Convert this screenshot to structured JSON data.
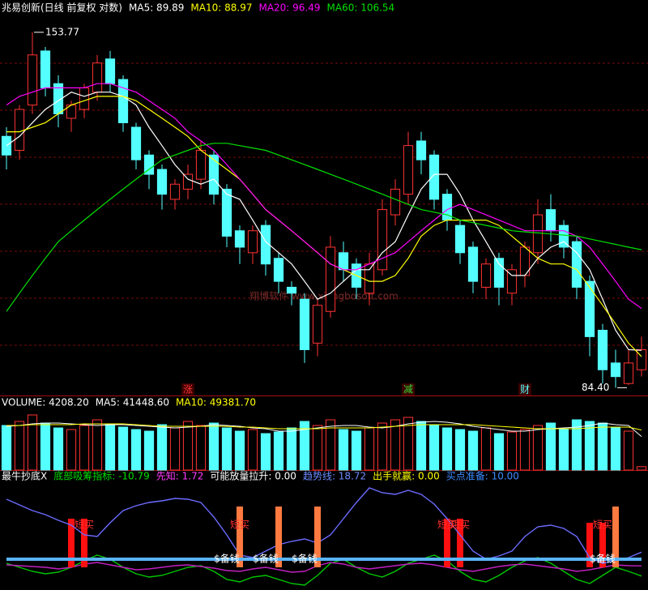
{
  "chart_data": [
    {
      "type": "candlestick",
      "title": "兆易创新(日线 前复权 对数)",
      "log_scale": true,
      "ylim": [
        83.3,
        158
      ],
      "up_color": "#ff3232",
      "down_color": "#54ffff",
      "title_color": "#ffffff",
      "open": [
        129,
        126,
        136,
        149,
        141,
        133,
        135,
        139,
        147,
        142,
        131,
        125,
        122,
        116,
        118,
        120,
        125,
        118,
        110,
        106,
        111,
        105,
        100,
        98,
        91,
        96,
        106,
        104,
        99,
        103,
        113,
        117,
        128,
        125,
        117,
        111,
        107,
        100,
        105,
        99,
        102,
        106,
        114,
        111,
        108,
        101,
        93,
        88,
        85,
        87
      ],
      "high": [
        131,
        136,
        153.77,
        150,
        143,
        137,
        141,
        148,
        149,
        143,
        132,
        126,
        123,
        120,
        123,
        128,
        126,
        119,
        111,
        111,
        112,
        106,
        101,
        99,
        98,
        109,
        108,
        105,
        106,
        116,
        120,
        130,
        130,
        126,
        118,
        112,
        108,
        105,
        106,
        104,
        108,
        116,
        117,
        112,
        109,
        102,
        94,
        90,
        90,
        92
      ],
      "low": [
        122,
        124,
        134,
        138,
        131,
        130,
        133,
        137,
        139,
        130,
        122,
        118,
        114,
        114,
        116,
        118,
        115,
        107,
        104,
        104,
        102,
        99,
        97,
        88,
        89,
        95,
        101,
        98,
        97,
        102,
        111,
        115,
        121,
        114,
        110,
        104,
        99,
        98,
        97,
        97,
        100,
        104,
        108,
        105,
        98,
        89,
        85,
        84.4,
        84.8,
        86
      ],
      "close": [
        125,
        135,
        148,
        140,
        134,
        136,
        140,
        146,
        141,
        132,
        124,
        121,
        117,
        119,
        121,
        126,
        117,
        109,
        107,
        110,
        104,
        101,
        99,
        90,
        97,
        107,
        103,
        100,
        104,
        114,
        118,
        127,
        124,
        116,
        112,
        106,
        101,
        104,
        100,
        103,
        107,
        113,
        110,
        107,
        100,
        92,
        87,
        86,
        88,
        90
      ],
      "series": [
        {
          "name": "MA5: 89.89",
          "color": "#ffffff",
          "values": [
            127,
            129,
            132,
            135,
            137,
            139,
            138,
            139,
            139,
            138,
            136,
            131,
            127,
            123,
            120,
            119,
            120,
            117,
            116,
            112,
            108,
            106,
            104,
            101,
            98,
            99,
            101,
            103,
            103,
            106,
            108,
            113,
            118,
            121,
            121,
            117,
            112,
            108,
            104,
            102,
            102,
            105,
            107,
            108,
            106,
            103,
            98,
            93,
            90,
            89.89
          ]
        },
        {
          "name": "MA10: 88.97",
          "color": "#ffff00",
          "values": [
            130,
            130,
            131,
            132,
            134,
            136,
            137,
            138,
            138,
            138,
            137,
            135,
            133,
            131,
            129,
            126,
            124,
            122,
            120,
            117,
            114,
            112,
            110,
            108,
            106,
            104,
            103,
            102,
            101,
            101,
            102,
            105,
            109,
            111,
            112,
            112,
            112,
            112,
            111,
            109,
            107,
            105,
            104,
            104,
            103,
            100,
            97,
            94,
            91,
            88.97
          ]
        },
        {
          "name": "MA20: 96.49",
          "color": "#ff00ff",
          "values": [
            136,
            138,
            139,
            140,
            140,
            140,
            140,
            141,
            141,
            140,
            139,
            137,
            135,
            133,
            130,
            128,
            126,
            123,
            120,
            117,
            114,
            112,
            110,
            108,
            106,
            104,
            103,
            103,
            104,
            105,
            106,
            108,
            110,
            112,
            114,
            115,
            114,
            113,
            112,
            111,
            110,
            110,
            110,
            110,
            109,
            107,
            104,
            101,
            98,
            96.49
          ]
        },
        {
          "name": "MA60: 106.54",
          "color": "#00e000",
          "values": [
            96,
            99,
            102,
            105,
            108,
            110,
            112,
            114,
            116,
            118,
            120,
            122,
            124,
            125,
            126,
            127,
            127.5,
            127.5,
            127,
            126.5,
            126,
            125,
            124,
            123,
            122,
            121,
            120,
            119,
            118,
            117,
            116,
            115,
            114,
            113.5,
            113,
            112,
            111.5,
            111,
            110.5,
            110,
            109.8,
            109.6,
            109.4,
            109.2,
            109,
            108.5,
            108,
            107.5,
            107,
            106.54
          ]
        }
      ],
      "price_labels": [
        {
          "text": "153.77",
          "index": 2
        },
        {
          "text": "84.40",
          "index": 47
        }
      ],
      "events": [
        {
          "text": "涨",
          "index": 14,
          "color": "#ff3232"
        },
        {
          "text": "减",
          "index": 31,
          "color": "#33dd33"
        },
        {
          "text": "财",
          "index": 40,
          "color": "#54ffff"
        }
      ],
      "watermark": "翔博软件  www.xiangbosoft.com"
    },
    {
      "type": "bar",
      "title": "VOLUME: 4208.20",
      "title_color": "#ffffff",
      "ylim": [
        0,
        90000
      ],
      "values": [
        55000,
        60000,
        68000,
        58000,
        52000,
        50000,
        55000,
        62000,
        57000,
        53000,
        50000,
        48000,
        56000,
        52000,
        60000,
        55000,
        58000,
        52000,
        48000,
        50000,
        45000,
        47000,
        52000,
        60000,
        55000,
        62000,
        50000,
        48000,
        52000,
        58000,
        62000,
        65000,
        60000,
        56000,
        52000,
        50000,
        48000,
        52000,
        45000,
        47000,
        50000,
        55000,
        58000,
        50000,
        62000,
        60000,
        58000,
        52000,
        48000,
        4208.2
      ],
      "series": [
        {
          "name": "MA5: 41448.60",
          "color": "#ffffff",
          "values": [
            54000,
            55000,
            57000,
            58000,
            58000,
            57000,
            56000,
            55000,
            56000,
            56000,
            55000,
            54000,
            53000,
            52000,
            53000,
            54000,
            56000,
            55000,
            54000,
            52000,
            51000,
            48000,
            48000,
            50000,
            52000,
            54000,
            55000,
            55000,
            53000,
            52000,
            54000,
            57000,
            59000,
            60000,
            59000,
            57000,
            54000,
            52000,
            50000,
            48000,
            48000,
            50000,
            51000,
            52000,
            53000,
            55000,
            58000,
            56000,
            55000,
            41448.6
          ]
        },
        {
          "name": "MA10: 49381.70",
          "color": "#ffff00",
          "values": [
            55000,
            55000,
            56000,
            56000,
            56000,
            56000,
            57000,
            57000,
            57000,
            57000,
            56000,
            55000,
            54000,
            54000,
            54000,
            54000,
            54000,
            54000,
            53000,
            53000,
            52000,
            51000,
            51000,
            51000,
            51000,
            52000,
            52000,
            52000,
            52000,
            53000,
            54000,
            55000,
            56000,
            56000,
            56000,
            56000,
            56000,
            55000,
            54000,
            53000,
            52000,
            51000,
            51000,
            51000,
            51000,
            52000,
            53000,
            53000,
            53000,
            49381.7
          ]
        }
      ]
    },
    {
      "type": "indicator",
      "title": "最牛抄底X",
      "title_color": "#ffffff",
      "ylim": [
        -25,
        105
      ],
      "series": [
        {
          "name": "底部吸筹指标: -10.79",
          "kind": "line",
          "color": "#00c800",
          "label_color": "#00e000",
          "values": [
            5,
            0,
            -5,
            -8,
            -6,
            0,
            8,
            15,
            10,
            0,
            -8,
            -12,
            -10,
            -5,
            0,
            2,
            -5,
            -15,
            -18,
            -12,
            -10,
            -15,
            -20,
            -22,
            -10,
            5,
            10,
            0,
            -8,
            -12,
            -5,
            5,
            10,
            15,
            8,
            -5,
            -15,
            -18,
            -10,
            0,
            8,
            12,
            5,
            -5,
            -15,
            -20,
            -10,
            0,
            -5,
            -10.79
          ]
        },
        {
          "name": "先知: 1.72",
          "kind": "line",
          "color": "#c020c0",
          "label_color": "#ff3cff",
          "values": [
            3,
            2,
            1,
            0,
            -2,
            0,
            4,
            6,
            3,
            0,
            -3,
            -2,
            0,
            2,
            3,
            1,
            -1,
            -4,
            -5,
            -2,
            0,
            -3,
            -6,
            -5,
            2,
            6,
            4,
            0,
            -2,
            0,
            2,
            4,
            5,
            3,
            0,
            -3,
            -5,
            -2,
            1,
            3,
            4,
            2,
            0,
            -2,
            -5,
            -3,
            0,
            3,
            2,
            1.72
          ]
        },
        {
          "name": "可能放量拉升: 0.00",
          "kind": "bar",
          "color": "#ff1010",
          "label_color": "#ffffff",
          "values": [
            0,
            0,
            0,
            0,
            0,
            60,
            60,
            0,
            0,
            0,
            0,
            0,
            0,
            0,
            0,
            0,
            0,
            0,
            0,
            0,
            0,
            0,
            0,
            0,
            0,
            0,
            0,
            0,
            0,
            0,
            0,
            0,
            0,
            0,
            60,
            60,
            0,
            0,
            0,
            0,
            0,
            0,
            0,
            0,
            0,
            55,
            55,
            0,
            0,
            0
          ]
        },
        {
          "name": "趋势线: 18.72",
          "kind": "line",
          "color": "#6b6bff",
          "label_color": "#6b8cff",
          "values": [
            84,
            77,
            70,
            65,
            58,
            52,
            40,
            38,
            55,
            70,
            76,
            80,
            82,
            85,
            84,
            80,
            62,
            40,
            15,
            12,
            20,
            28,
            32,
            35,
            30,
            40,
            60,
            80,
            98,
            92,
            90,
            95,
            90,
            78,
            60,
            40,
            20,
            10,
            14,
            20,
            38,
            50,
            52,
            48,
            38,
            12,
            5,
            8,
            12,
            18.72
          ]
        },
        {
          "name": "出手就赢: 0.00",
          "kind": "bar",
          "color": "#ff7a40",
          "label_color": "#ffff00",
          "values": [
            0,
            0,
            0,
            0,
            0,
            0,
            0,
            0,
            0,
            0,
            0,
            0,
            0,
            0,
            0,
            0,
            0,
            0,
            75,
            0,
            0,
            75,
            0,
            0,
            75,
            0,
            0,
            0,
            0,
            0,
            0,
            0,
            0,
            0,
            0,
            0,
            0,
            0,
            0,
            0,
            0,
            0,
            0,
            0,
            0,
            0,
            0,
            75,
            0,
            0
          ]
        },
        {
          "name": "买点准备: 10.00",
          "kind": "thick",
          "color": "#5ab4ff",
          "label_color": "#3c8cff",
          "values": [
            10,
            10,
            10,
            10,
            10,
            10,
            10,
            10,
            10,
            10,
            10,
            10,
            10,
            10,
            10,
            10,
            10,
            10,
            10,
            10,
            10,
            10,
            10,
            10,
            10,
            10,
            10,
            10,
            10,
            10,
            10,
            10,
            10,
            10,
            10,
            10,
            10,
            10,
            10,
            10,
            10,
            10,
            10,
            10,
            10,
            10,
            10,
            10,
            10,
            10
          ]
        }
      ],
      "signal_labels": [
        {
          "text": "短买",
          "index": 6
        },
        {
          "text": "短买",
          "index": 18
        },
        {
          "text": "短买",
          "index": 34
        },
        {
          "text": "短买",
          "index": 35
        },
        {
          "text": "短买",
          "index": 46
        }
      ],
      "cash_labels": [
        {
          "text": "$备钱",
          "index": 17
        },
        {
          "text": "$备钱",
          "index": 20
        },
        {
          "text": "$备钱",
          "index": 23
        },
        {
          "text": "$备钱",
          "index": 46
        }
      ]
    }
  ]
}
